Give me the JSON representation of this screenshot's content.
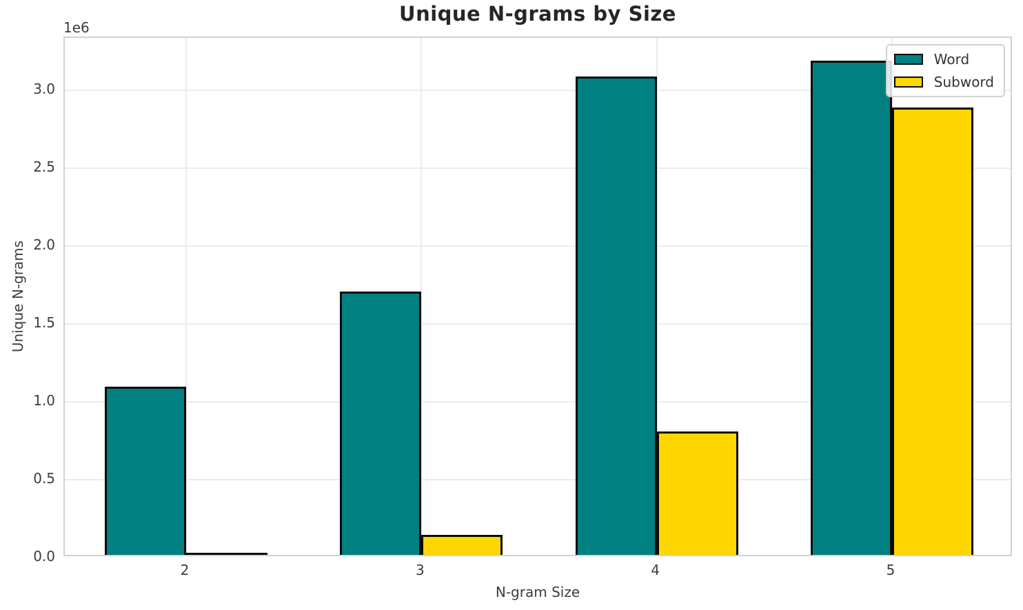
{
  "chart_data": {
    "type": "bar",
    "title": "Unique N-grams by Size",
    "xlabel": "N-gram Size",
    "ylabel": "Unique N-grams",
    "offset_label": "1e6",
    "categories": [
      "2",
      "3",
      "4",
      "5"
    ],
    "series": [
      {
        "name": "Word",
        "color": "#008080",
        "values": [
          1080000,
          1690000,
          3070000,
          3170000
        ]
      },
      {
        "name": "Subword",
        "color": "#FFD700",
        "values": [
          14000,
          130000,
          790000,
          2870000
        ]
      }
    ],
    "ylim": [
      0,
      3335000
    ],
    "yticks": {
      "values": [
        0,
        500000,
        1000000,
        1500000,
        2000000,
        2500000,
        3000000
      ],
      "labels": [
        "0.0",
        "0.5",
        "1.0",
        "1.5",
        "2.0",
        "2.5",
        "3.0"
      ]
    },
    "grid": true,
    "legend_position": "upper right",
    "bar_edge_color": "#0a0a0a",
    "background_color": "#ffffff"
  }
}
